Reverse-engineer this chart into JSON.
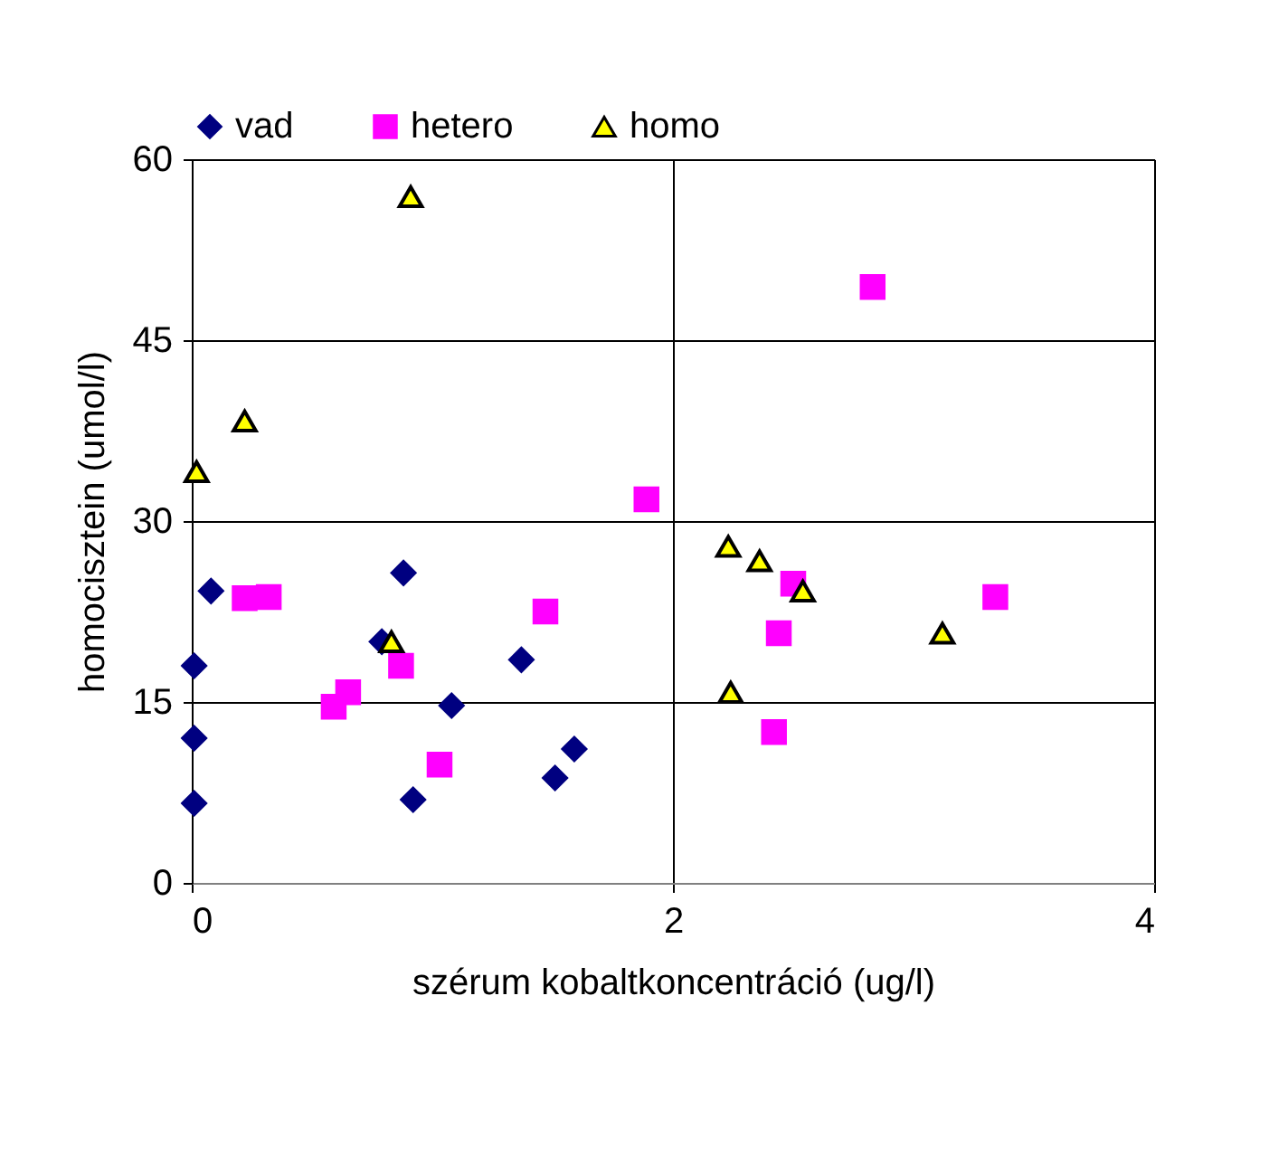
{
  "chart_data": {
    "type": "scatter",
    "xlabel": "szérum kobaltkoncentráció (ug/l)",
    "ylabel": "homocisztein (umol/l)",
    "xlim": [
      0,
      4
    ],
    "xticks": [
      0,
      2,
      4
    ],
    "ylim": [
      0,
      60
    ],
    "yticks": [
      0,
      15,
      30,
      45,
      60
    ],
    "grid": true,
    "legend": "top",
    "series": [
      {
        "name": "vad",
        "color": "#000080",
        "marker": "diamond",
        "x": [
          0.01,
          0.01,
          0.01,
          0.08,
          0.88,
          0.79,
          0.92,
          1.08,
          1.37,
          1.51,
          1.59
        ],
        "values": [
          18.0,
          12.0,
          6.6,
          24.2,
          25.7,
          20.0,
          6.9,
          14.7,
          18.5,
          8.7,
          11.1
        ]
      },
      {
        "name": "hetero",
        "color": "#ff00ff",
        "marker": "square",
        "x": [
          0.22,
          0.32,
          0.59,
          0.65,
          0.87,
          1.03,
          1.47,
          1.89,
          2.83,
          2.42,
          2.44,
          2.5,
          3.34
        ],
        "values": [
          23.6,
          23.7,
          14.6,
          15.8,
          18.0,
          9.8,
          22.5,
          31.8,
          49.4,
          12.5,
          20.7,
          24.8,
          23.7
        ]
      },
      {
        "name": "homo",
        "color": "#ffff00",
        "marker": "triangle",
        "x": [
          0.02,
          0.22,
          0.91,
          0.83,
          2.23,
          2.36,
          2.54,
          3.12,
          2.24
        ],
        "values": [
          34.1,
          38.3,
          56.9,
          20.0,
          27.9,
          26.7,
          24.2,
          20.7,
          15.8
        ]
      }
    ]
  }
}
